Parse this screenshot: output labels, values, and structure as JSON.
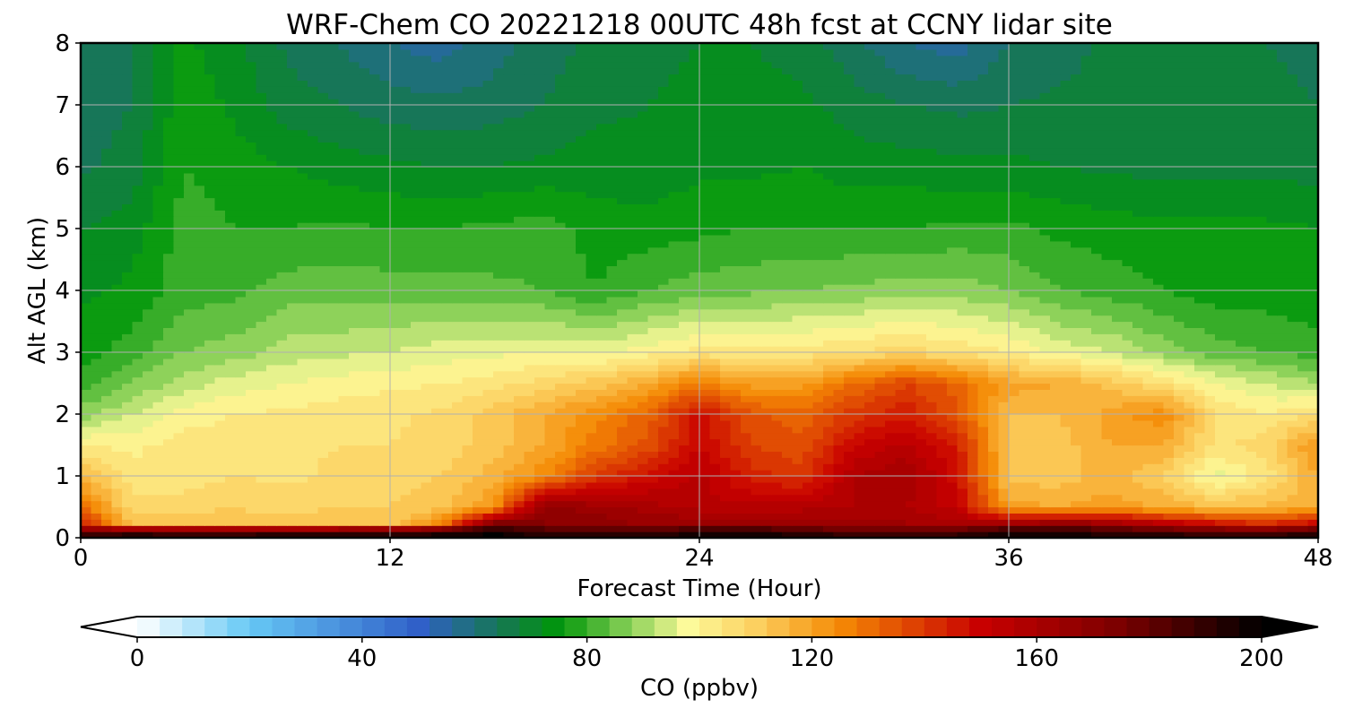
{
  "chart_data": {
    "type": "heatmap",
    "title": "WRF-Chem CO  20221218 00UTC 48h fcst at CCNY lidar site",
    "xlabel": "Forecast Time (Hour)",
    "ylabel": "Alt AGL (km)",
    "xlim": [
      0,
      48
    ],
    "ylim": [
      0,
      8
    ],
    "x_ticks": [
      0,
      12,
      24,
      36,
      48
    ],
    "y_ticks": [
      0,
      1,
      2,
      3,
      4,
      5,
      6,
      7,
      8
    ],
    "grid": true,
    "colorbar": {
      "label": "CO  (ppbv)",
      "range": [
        0,
        200
      ],
      "ticks": [
        0,
        40,
        80,
        120,
        160,
        200
      ],
      "extend": "both",
      "colors": [
        {
          "v": 0,
          "c": "#ffffff"
        },
        {
          "v": 20,
          "c": "#66c8f5"
        },
        {
          "v": 50,
          "c": "#3060c8"
        },
        {
          "v": 65,
          "c": "#157850"
        },
        {
          "v": 75,
          "c": "#00960a"
        },
        {
          "v": 88,
          "c": "#8ed25a"
        },
        {
          "v": 98,
          "c": "#fcfa9a"
        },
        {
          "v": 110,
          "c": "#fcd060"
        },
        {
          "v": 125,
          "c": "#f58a05"
        },
        {
          "v": 150,
          "c": "#c80000"
        },
        {
          "v": 175,
          "c": "#7a0000"
        },
        {
          "v": 200,
          "c": "#000000"
        }
      ]
    },
    "x_hours": [
      0,
      2,
      4,
      6,
      8,
      10,
      12,
      14,
      16,
      18,
      20,
      22,
      24,
      26,
      28,
      30,
      32,
      34,
      36,
      38,
      40,
      42,
      44,
      46,
      48
    ],
    "z_levels_km": [
      0,
      0.1,
      0.25,
      0.5,
      1,
      1.5,
      2,
      2.5,
      3,
      4,
      5,
      6,
      7,
      8
    ],
    "values_ppbv": [
      [
        200,
        196,
        196,
        196,
        195,
        195,
        195,
        197,
        200,
        195,
        195,
        196,
        198,
        198,
        196,
        194,
        194,
        196,
        198,
        198,
        196,
        196,
        194,
        194,
        198
      ],
      [
        175,
        185,
        182,
        183,
        186,
        186,
        187,
        192,
        198,
        188,
        186,
        188,
        192,
        194,
        188,
        182,
        182,
        184,
        196,
        194,
        190,
        186,
        183,
        182,
        188
      ],
      [
        145,
        112,
        114,
        112,
        112,
        114,
        112,
        125,
        170,
        170,
        168,
        165,
        165,
        162,
        162,
        162,
        162,
        160,
        158,
        165,
        160,
        152,
        146,
        140,
        148
      ],
      [
        130,
        108,
        108,
        110,
        108,
        110,
        110,
        112,
        122,
        168,
        164,
        160,
        156,
        155,
        157,
        158,
        158,
        152,
        120,
        118,
        120,
        118,
        114,
        115,
        118
      ],
      [
        115,
        103,
        104,
        106,
        105,
        107,
        108,
        110,
        116,
        125,
        140,
        148,
        155,
        144,
        140,
        158,
        162,
        148,
        112,
        112,
        116,
        110,
        96,
        104,
        118
      ],
      [
        102,
        101,
        104,
        104,
        105,
        106,
        106,
        108,
        112,
        118,
        128,
        135,
        150,
        138,
        135,
        150,
        155,
        145,
        112,
        112,
        118,
        118,
        105,
        108,
        124
      ],
      [
        88,
        94,
        100,
        102,
        103,
        104,
        105,
        107,
        112,
        118,
        125,
        132,
        148,
        135,
        132,
        140,
        145,
        135,
        114,
        114,
        120,
        125,
        106,
        102,
        106
      ],
      [
        80,
        86,
        92,
        96,
        98,
        100,
        101,
        102,
        104,
        108,
        112,
        118,
        128,
        120,
        120,
        130,
        138,
        132,
        120,
        118,
        112,
        106,
        98,
        94,
        90
      ],
      [
        76,
        80,
        86,
        88,
        92,
        93,
        94,
        96,
        97,
        98,
        97,
        100,
        104,
        103,
        104,
        106,
        108,
        105,
        102,
        97,
        94,
        88,
        84,
        82,
        80
      ],
      [
        73,
        75,
        80,
        81,
        84,
        84,
        84,
        84,
        83,
        82,
        78,
        82,
        84,
        85,
        86,
        87,
        88,
        88,
        86,
        82,
        80,
        78,
        76,
        76,
        75
      ],
      [
        70,
        72,
        80,
        78,
        78,
        79,
        78,
        78,
        79,
        80,
        76,
        76,
        77,
        78,
        78,
        78,
        78,
        79,
        79,
        77,
        76,
        75,
        75,
        75,
        74
      ],
      [
        65,
        68,
        78,
        76,
        74,
        72,
        71,
        70,
        70,
        71,
        72,
        71,
        73,
        73,
        74,
        72,
        72,
        71,
        71,
        70,
        69,
        69,
        69,
        69,
        68
      ],
      [
        64,
        66,
        77,
        73,
        68,
        66,
        64,
        63,
        64,
        66,
        69,
        70,
        71,
        72,
        71,
        68,
        66,
        65,
        66,
        67,
        68,
        68,
        68,
        67,
        66
      ],
      [
        63,
        66,
        75,
        71,
        65,
        62,
        58,
        56,
        60,
        64,
        67,
        69,
        70,
        70,
        68,
        63,
        58,
        56,
        62,
        64,
        67,
        67,
        67,
        66,
        65
      ]
    ]
  }
}
